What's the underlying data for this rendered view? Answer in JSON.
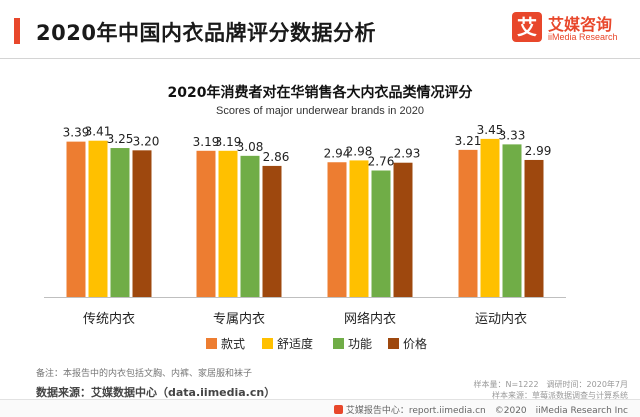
{
  "header": {
    "title": "2020年中国内衣品牌评分数据分析",
    "logo_mark": "艾",
    "logo_cn": "艾媒咨询",
    "logo_en": "iiMedia Research"
  },
  "colors": {
    "accent": "#e8472b",
    "series": [
      "#ed7d31",
      "#ffc000",
      "#70ad47",
      "#9e480e"
    ]
  },
  "chart_data": {
    "type": "bar",
    "title": "2020年消费者对在华销售各大内衣品类情况评分",
    "subtitle": "Scores of major underwear brands in 2020",
    "categories": [
      "传统内衣",
      "专属内衣",
      "网络内衣",
      "运动内衣"
    ],
    "series": [
      {
        "name": "款式",
        "values": [
          3.39,
          3.19,
          2.94,
          3.21
        ]
      },
      {
        "name": "舒适度",
        "values": [
          3.41,
          3.19,
          2.98,
          3.45
        ]
      },
      {
        "name": "功能",
        "values": [
          3.25,
          3.08,
          2.76,
          3.33
        ]
      },
      {
        "name": "价格",
        "values": [
          3.2,
          2.86,
          2.93,
          2.99
        ]
      }
    ],
    "value_labels": [
      [
        "3.39",
        "3.41",
        "3.25",
        "3.20"
      ],
      [
        "3.19",
        "3.19",
        "3.08",
        "2.86"
      ],
      [
        "2.94",
        "2.98",
        "2.76",
        "2.93"
      ],
      [
        "3.21",
        "3.45",
        "3.33",
        "2.99"
      ]
    ],
    "ylim": [
      0,
      3.6
    ],
    "grid": false,
    "legend": "bottom"
  },
  "footnotes": {
    "note": "备注：本报告中的内衣包括文胸、内裤、家居服和袜子",
    "source": "数据来源：艾媒数据中心（data.iimedia.cn）",
    "sample": "样本量：N=1222　调研时间：2020年7月",
    "sample_source": "样本来源：草莓派数据调查与计算系统",
    "footer": "艾媒报告中心：report.iimedia.cn　©2020　iiMedia Research Inc"
  }
}
